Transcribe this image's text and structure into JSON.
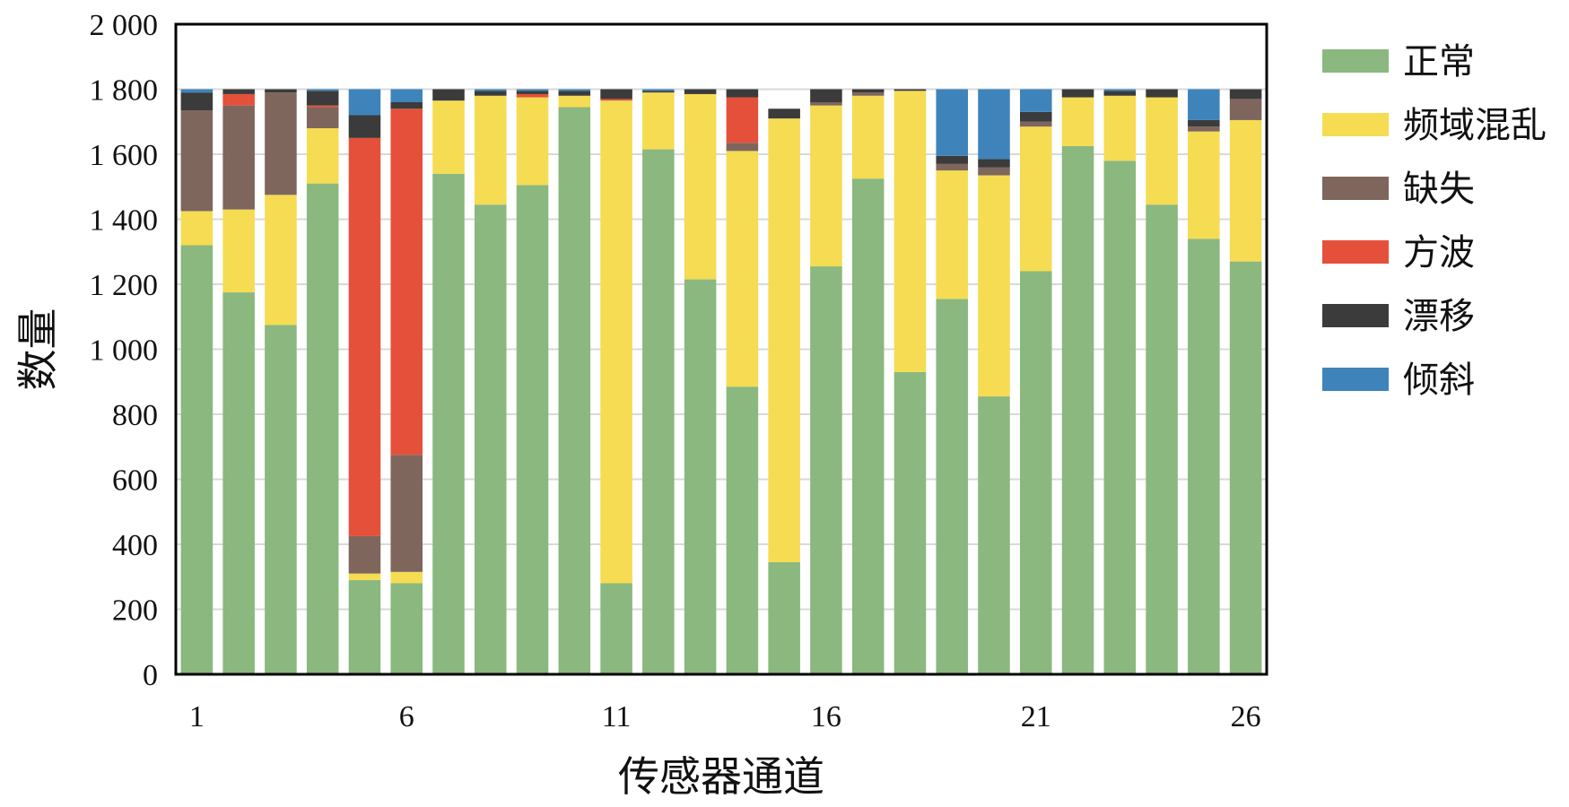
{
  "chart_data": {
    "type": "bar",
    "stacked": true,
    "title": "",
    "xlabel": "传感器通道",
    "ylabel": "数量",
    "ylim": [
      0,
      2000
    ],
    "yticks": [
      0,
      200,
      400,
      600,
      800,
      1000,
      1200,
      1400,
      1600,
      1800,
      2000
    ],
    "ytick_labels": [
      "0",
      "200",
      "400",
      "600",
      "800",
      "1 000",
      "1 200",
      "1 400",
      "1 600",
      "1 800",
      "2 000"
    ],
    "categories": [
      "1",
      "2",
      "3",
      "4",
      "5",
      "6",
      "7",
      "8",
      "9",
      "10",
      "11",
      "12",
      "13",
      "14",
      "15",
      "16",
      "17",
      "18",
      "19",
      "20",
      "21",
      "22",
      "23",
      "24",
      "25",
      "26"
    ],
    "xtick_labels": {
      "1": "1",
      "6": "6",
      "11": "11",
      "16": "16",
      "21": "21",
      "26": "26"
    },
    "grid": true,
    "legend_position": "right",
    "series": [
      {
        "name": "正常",
        "color": "#8ab87e",
        "values": [
          1320,
          1175,
          1075,
          1510,
          290,
          280,
          1540,
          1445,
          1505,
          1745,
          280,
          1615,
          1215,
          885,
          345,
          1255,
          1525,
          930,
          1155,
          855,
          1240,
          1625,
          1580,
          1445,
          1340,
          1270
        ]
      },
      {
        "name": "频域混乱",
        "color": "#f5dc52",
        "values": [
          105,
          255,
          400,
          170,
          20,
          35,
          225,
          335,
          270,
          35,
          1485,
          175,
          570,
          725,
          1365,
          495,
          255,
          865,
          395,
          680,
          445,
          150,
          200,
          330,
          330,
          435
        ]
      },
      {
        "name": "缺失",
        "color": "#7e665c",
        "values": [
          310,
          320,
          315,
          65,
          115,
          360,
          0,
          0,
          0,
          0,
          0,
          0,
          0,
          25,
          0,
          10,
          10,
          0,
          20,
          25,
          15,
          0,
          0,
          0,
          15,
          65
        ]
      },
      {
        "name": "方波",
        "color": "#e5503a",
        "values": [
          0,
          35,
          0,
          5,
          1225,
          1065,
          0,
          0,
          10,
          0,
          5,
          0,
          0,
          140,
          0,
          0,
          0,
          0,
          0,
          0,
          0,
          0,
          0,
          0,
          0,
          0
        ]
      },
      {
        "name": "漂移",
        "color": "#3b3b3b",
        "values": [
          55,
          15,
          10,
          45,
          70,
          20,
          35,
          15,
          10,
          15,
          30,
          5,
          15,
          25,
          30,
          40,
          10,
          5,
          25,
          25,
          30,
          25,
          15,
          25,
          20,
          30
        ]
      },
      {
        "name": "倾斜",
        "color": "#3e84bb",
        "values": [
          10,
          0,
          0,
          5,
          80,
          40,
          0,
          5,
          5,
          5,
          0,
          5,
          0,
          0,
          0,
          0,
          0,
          0,
          205,
          215,
          70,
          0,
          5,
          0,
          95,
          0
        ]
      }
    ]
  }
}
